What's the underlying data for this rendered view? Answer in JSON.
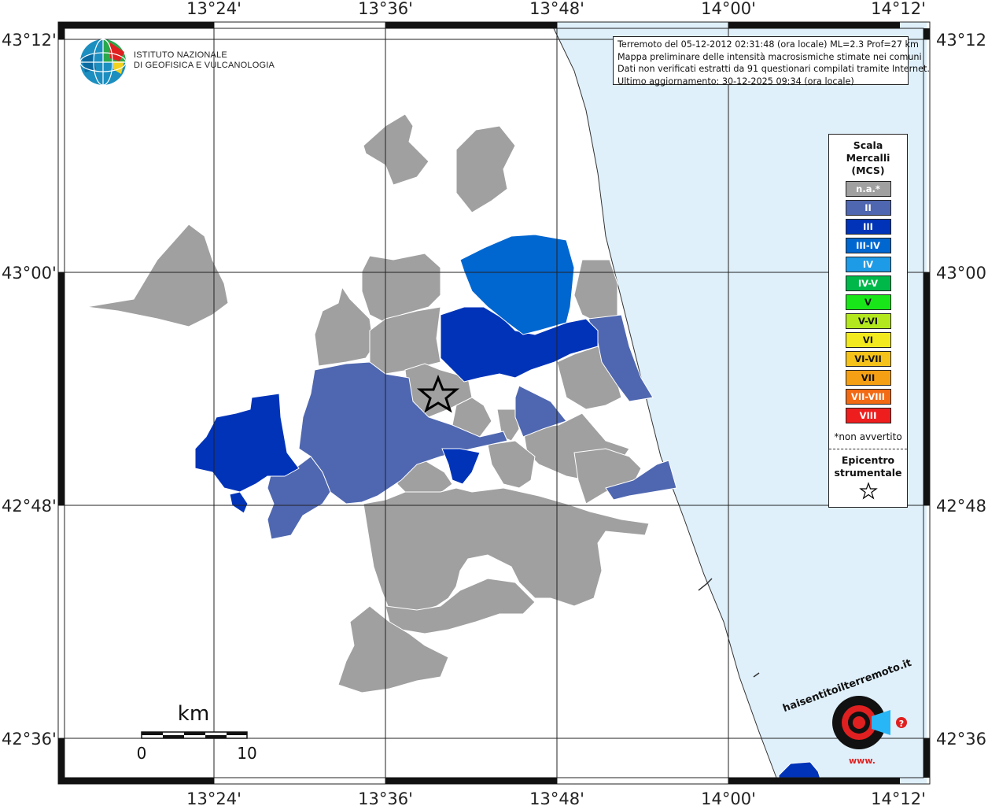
{
  "header": {
    "info_lines": [
      "Terremoto del 05-12-2012 02:31:48 (ora locale) ML=2.3 Prof=27 km",
      "Mappa preliminare delle intensità macrosismiche stimate nei comuni",
      "Dati non verificati estratti da 91 questionari compilati tramite Internet.",
      "Ultimo aggiornamento: 30-12-2025 09:34 (ora locale)"
    ]
  },
  "logo": {
    "name_line1": "ISTITUTO NAZIONALE",
    "name_line2": "DI GEOFISICA E VULCANOLOGIA",
    "badge_text": "haisentitoilterremoto.it",
    "badge_url_text": "www."
  },
  "axes": {
    "longitudes": [
      "13°24'",
      "13°36'",
      "13°48'",
      "14°00'",
      "14°12'"
    ],
    "latitudes": [
      "43°12'",
      "43°00'",
      "42°48'",
      "42°36'"
    ]
  },
  "scale_bar": {
    "unit": "km",
    "start": "0",
    "end": "10"
  },
  "legend": {
    "title_lines": [
      "Scala",
      "Mercalli",
      "(MCS)"
    ],
    "classes": [
      {
        "label": "n.a.*",
        "color": "#a0a0a0"
      },
      {
        "label": "II",
        "color": "#4f67b0"
      },
      {
        "label": "III",
        "color": "#0033b8"
      },
      {
        "label": "III-IV",
        "color": "#0066d0"
      },
      {
        "label": "IV",
        "color": "#1e9be6"
      },
      {
        "label": "IV-V",
        "color": "#00b84a"
      },
      {
        "label": "V",
        "color": "#19e619"
      },
      {
        "label": "V-VI",
        "color": "#b4e81e"
      },
      {
        "label": "VI",
        "color": "#f2ea1e"
      },
      {
        "label": "VI-VII",
        "color": "#f5c21a"
      },
      {
        "label": "VII",
        "color": "#f5a014"
      },
      {
        "label": "VII-VIII",
        "color": "#f26a14"
      },
      {
        "label": "VIII",
        "color": "#ee1e1e"
      }
    ],
    "note": "*non avvertito",
    "epicenter_label_lines": [
      "Epicentro",
      "strumentale"
    ]
  },
  "map_colors": {
    "sea": "#dff0fb",
    "na": "#a0a0a0",
    "II": "#4f67b0",
    "III": "#0033b8",
    "III-IV": "#0066d0"
  }
}
